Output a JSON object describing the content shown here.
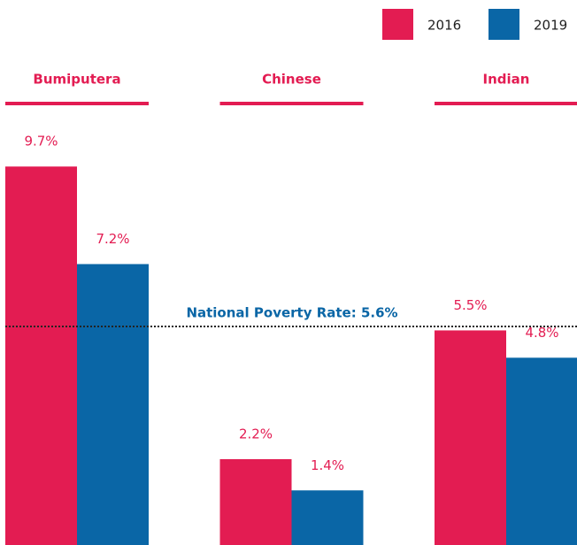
{
  "chart_data": {
    "type": "bar",
    "categories": [
      "Bumiputera",
      "Chinese",
      "Indian"
    ],
    "series": [
      {
        "name": "2016",
        "color": "#e31c52",
        "values": [
          9.7,
          2.2,
          5.5
        ],
        "value_labels": [
          "9.7%",
          "2.2%",
          "5.5%"
        ]
      },
      {
        "name": "2019",
        "color": "#0a66a6",
        "values": [
          7.2,
          1.4,
          4.8
        ],
        "value_labels": [
          "7.2%",
          "1.4%",
          "4.8%"
        ]
      }
    ],
    "ylim": [
      0,
      10
    ],
    "reference_line": {
      "text": "National Poverty Rate: 5.6%",
      "value": 5.6,
      "color": "#0a66a6"
    },
    "legend": "top-right"
  }
}
